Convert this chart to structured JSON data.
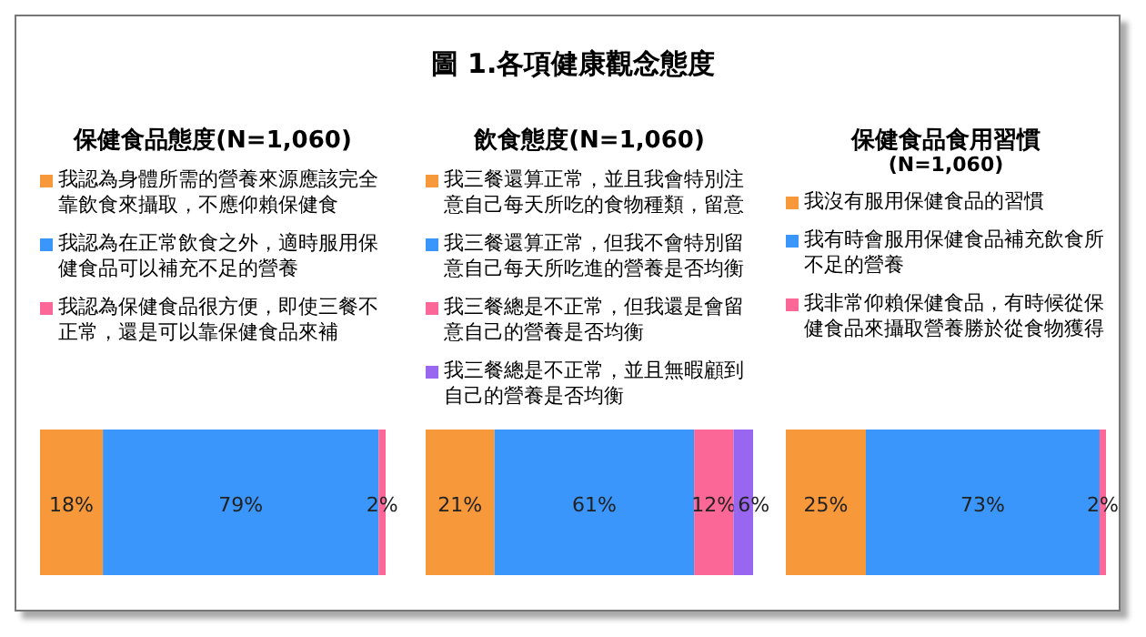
{
  "chart_data": [
    {
      "type": "bar",
      "orientation": "horizontal",
      "stacked": true,
      "legend": "top",
      "title": "保健食品態度(N=1,060)",
      "annotations": [
        "圖 1.各項健康觀念態度"
      ],
      "categories": [
        null
      ],
      "series": [
        {
          "name": "我認為身體所需的營養來源應該完全靠飲食來攝取，不應仰賴保健食",
          "color": "#f7983a",
          "values": [
            18
          ],
          "value_labels": [
            "18%"
          ]
        },
        {
          "name": "我認為在正常飲食之外，適時服用保健食品可以補充不足的營養",
          "color": "#3a96fa",
          "values": [
            79
          ],
          "value_labels": [
            "79%"
          ]
        },
        {
          "name": "我認為保健食品很方便，即使三餐不正常，還是可以靠保健食品來補",
          "color": "#fb6797",
          "values": [
            2
          ],
          "value_labels": [
            "2%"
          ]
        }
      ]
    },
    {
      "type": "bar",
      "orientation": "horizontal",
      "stacked": true,
      "legend": "top",
      "title": "飲食態度(N=1,060)",
      "categories": [
        null
      ],
      "series": [
        {
          "name": "我三餐還算正常，並且我會特別注意自己每天所吃的食物種類，留意",
          "color": "#f7983a",
          "values": [
            21
          ],
          "value_labels": [
            "21%"
          ]
        },
        {
          "name": "我三餐還算正常，但我不會特別留意自己每天所吃進的營養是否均衡",
          "color": "#3a96fa",
          "values": [
            61
          ],
          "value_labels": [
            "61%"
          ]
        },
        {
          "name": "我三餐總是不正常，但我還是會留意自己的營養是否均衡",
          "color": "#fb6797",
          "values": [
            12
          ],
          "value_labels": [
            "12%"
          ]
        },
        {
          "name": "我三餐總是不正常，並且無暇顧到自己的營養是否均衡",
          "color": "#9966f0",
          "values": [
            6
          ],
          "value_labels": [
            "6%"
          ]
        }
      ]
    },
    {
      "type": "bar",
      "orientation": "horizontal",
      "stacked": true,
      "legend": "top",
      "title": "保健食品食用習慣",
      "subtitle": "(N=1,060)",
      "categories": [
        null
      ],
      "series": [
        {
          "name": "我沒有服用保健食品的習慣",
          "color": "#f7983a",
          "values": [
            25
          ],
          "value_labels": [
            "25%"
          ]
        },
        {
          "name": "我有時會服用保健食品補充飲食所不足的營養",
          "color": "#3a96fa",
          "values": [
            73
          ],
          "value_labels": [
            "73%"
          ]
        },
        {
          "name": "我非常仰賴保健食品，有時候從保健食品來攝取營養勝於從食物獲得",
          "color": "#fb6797",
          "values": [
            2
          ],
          "value_labels": [
            "2%"
          ]
        }
      ]
    }
  ]
}
